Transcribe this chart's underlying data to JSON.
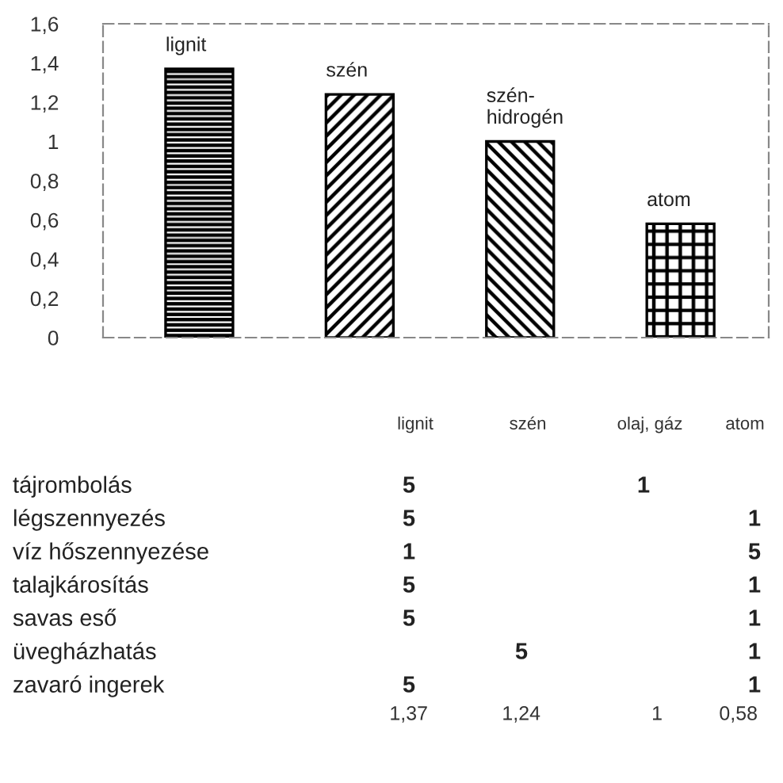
{
  "chart_data": [
    {
      "type": "bar",
      "categories": [
        "lignit",
        "szén",
        "szén-\nhidrogén",
        "atom"
      ],
      "values": [
        1.37,
        1.24,
        1,
        0.58
      ],
      "color": "#000000",
      "ylim": [
        0,
        1.6
      ],
      "yticks": [
        {
          "value": 0,
          "label": "0"
        },
        {
          "value": 0.2,
          "label": "0,2"
        },
        {
          "value": 0.4,
          "label": "0,4"
        },
        {
          "value": 0.6,
          "label": "0,6"
        },
        {
          "value": 0.8,
          "label": "0,8"
        },
        {
          "value": 1,
          "label": "1"
        },
        {
          "value": 1.2,
          "label": "1,2"
        },
        {
          "value": 1.4,
          "label": "1,4"
        },
        {
          "value": 1.6,
          "label": "1,6"
        }
      ],
      "grid": false,
      "legend": false
    },
    {
      "type": "other",
      "categories": [
        "lignit",
        "szén",
        "olaj, gáz",
        "atom"
      ],
      "y_categories": [
        "tájrombolás",
        "légszennyezés",
        "víz hőszennyezése",
        "talajkárosítás",
        "savas eső",
        "üvegházhatás",
        "zavaró ingerek",
        null
      ],
      "cell_labels": [
        [
          "5",
          null,
          "1",
          null
        ],
        [
          "5",
          null,
          null,
          "1"
        ],
        [
          "1",
          null,
          null,
          "5"
        ],
        [
          "5",
          null,
          null,
          "1"
        ],
        [
          "5",
          null,
          null,
          "1"
        ],
        [
          null,
          "5",
          null,
          "1"
        ],
        [
          "5",
          null,
          null,
          "1"
        ],
        [
          "1,37",
          "1,24",
          "1",
          "0,58"
        ]
      ]
    }
  ]
}
